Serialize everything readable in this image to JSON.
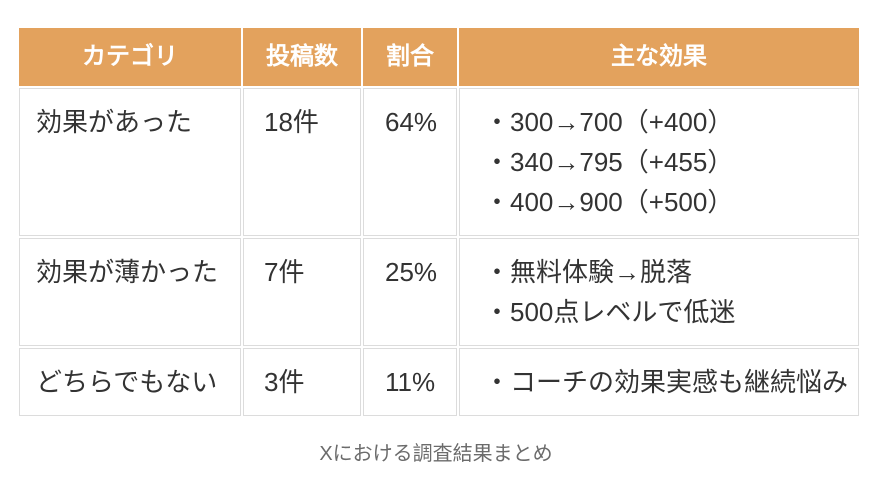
{
  "chart_data": {
    "type": "table",
    "columns": [
      "カテゴリ",
      "投稿数",
      "割合",
      "主な効果"
    ],
    "rows": [
      {
        "category": "効果があった",
        "post_count": "18件",
        "share": "64%",
        "effects": [
          "・300→700（+400）",
          "・340→795（+455）",
          "・400→900（+500）"
        ]
      },
      {
        "category": "効果が薄かった",
        "post_count": "7件",
        "share": "25%",
        "effects": [
          "・無料体験→脱落",
          "・500点レベルで低迷"
        ]
      },
      {
        "category": "どちらでもない",
        "post_count": "3件",
        "share": "11%",
        "effects": [
          "・コーチの効果実感も継続悩み"
        ]
      }
    ],
    "caption": "Xにおける調査結果まとめ"
  },
  "colors": {
    "header_bg": "#e3a25d",
    "header_text": "#ffffff",
    "body_text": "#333333",
    "cell_border": "#dcdcdc",
    "caption_text": "#6b6b6b",
    "background": "#ffffff"
  }
}
